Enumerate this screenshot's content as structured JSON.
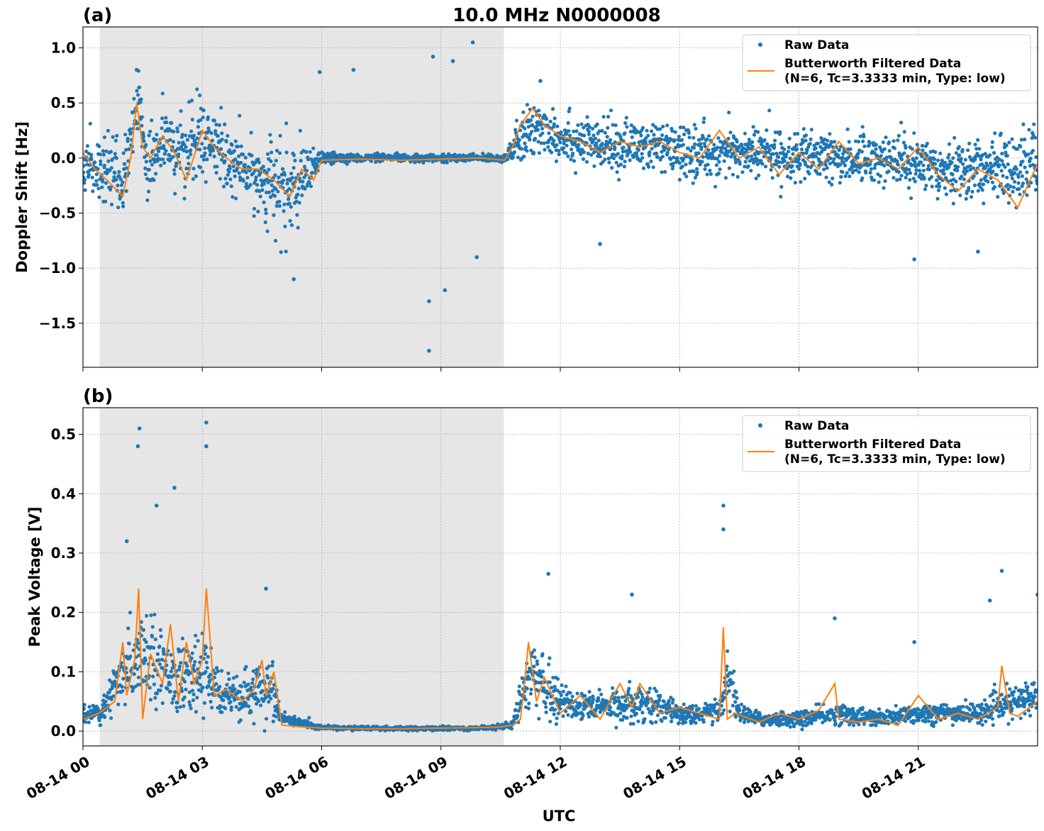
{
  "figure": {
    "title": "10.0 MHz N0000008",
    "xlabel": "UTC",
    "xticks": [
      "08-14 00",
      "08-14 03",
      "08-14 06",
      "08-14 09",
      "08-14 12",
      "08-14 15",
      "08-14 18",
      "08-14 21"
    ]
  },
  "colors": {
    "raw": "#1f77b4",
    "filtered": "#ff7f0e",
    "shade": "#e6e6e6",
    "grid": "#b0b0b0"
  },
  "chart_data": [
    {
      "type": "scatter",
      "panel_label": "(a)",
      "ylabel": "Doppler Shift [Hz]",
      "xlim_hours": [
        0,
        24
      ],
      "ylim": [
        -1.9,
        1.19
      ],
      "yticks": [
        1.0,
        0.5,
        0.0,
        -0.5,
        -1.0,
        -1.5
      ],
      "ytick_labels": [
        "1.0",
        "0.5",
        "0.0",
        "−0.5",
        "−1.0",
        "−1.5"
      ],
      "shaded_region_hours": [
        0.42,
        10.58
      ],
      "grid": true,
      "legend": {
        "placement": "top-right",
        "entries": [
          "Raw Data",
          "Butterworth Filtered Data",
          "(N=6, Tc=3.3333 min, Type: low)"
        ]
      },
      "series": [
        {
          "name": "Raw Data",
          "kind": "scatter",
          "x_hours": [
            0,
            0.5,
            1.0,
            1.4,
            1.6,
            2.0,
            2.5,
            3.0,
            3.5,
            4.0,
            4.5,
            5.0,
            5.5,
            6.0,
            7.0,
            8.0,
            9.0,
            10.0,
            10.6,
            11.0,
            11.5,
            12.0,
            13.0,
            14.0,
            15.0,
            16.0,
            17.0,
            18.0,
            19.0,
            20.0,
            21.0,
            22.0,
            23.0,
            24.0
          ],
          "y_center": [
            -0.05,
            -0.12,
            -0.2,
            0.5,
            -0.05,
            0.15,
            0.05,
            0.2,
            0.0,
            -0.1,
            -0.2,
            -0.3,
            -0.25,
            0.0,
            0.0,
            0.0,
            0.0,
            0.0,
            0.0,
            0.15,
            0.3,
            0.2,
            0.1,
            0.12,
            0.05,
            0.05,
            0.05,
            0.0,
            0.0,
            0.0,
            -0.05,
            -0.1,
            -0.1,
            -0.05
          ],
          "y_spread": [
            0.2,
            0.3,
            0.25,
            0.3,
            0.35,
            0.3,
            0.3,
            0.3,
            0.3,
            0.25,
            0.3,
            0.4,
            0.3,
            0.05,
            0.03,
            0.03,
            0.03,
            0.03,
            0.03,
            0.2,
            0.25,
            0.2,
            0.2,
            0.2,
            0.2,
            0.2,
            0.2,
            0.2,
            0.2,
            0.2,
            0.2,
            0.25,
            0.25,
            0.25
          ],
          "outliers": [
            [
              1.35,
              0.8
            ],
            [
              5.95,
              0.78
            ],
            [
              6.8,
              0.8
            ],
            [
              8.8,
              0.92
            ],
            [
              9.3,
              0.88
            ],
            [
              9.8,
              1.05
            ],
            [
              8.7,
              -1.75
            ],
            [
              8.7,
              -1.3
            ],
            [
              9.1,
              -1.2
            ],
            [
              5.3,
              -1.1
            ],
            [
              9.9,
              -0.9
            ],
            [
              13.0,
              -0.78
            ],
            [
              22.5,
              -0.85
            ],
            [
              20.9,
              -0.92
            ],
            [
              11.5,
              0.7
            ]
          ]
        },
        {
          "name": "Butterworth Filtered Data",
          "kind": "line",
          "x_hours": [
            0,
            0.3,
            0.6,
            1.0,
            1.2,
            1.35,
            1.5,
            1.7,
            2.0,
            2.3,
            2.6,
            3.0,
            3.3,
            3.6,
            4.0,
            4.4,
            4.8,
            5.2,
            5.5,
            5.8,
            6.0,
            7.0,
            8.0,
            9.0,
            10.0,
            10.6,
            10.8,
            11.0,
            11.3,
            11.6,
            12.0,
            12.5,
            13.0,
            13.5,
            14.0,
            14.5,
            15.0,
            15.5,
            16.0,
            16.5,
            17.0,
            17.5,
            18.0,
            18.5,
            19.0,
            19.5,
            20.0,
            20.5,
            21.0,
            21.5,
            22.0,
            22.5,
            23.0,
            23.5,
            24.0
          ],
          "y": [
            0.05,
            -0.1,
            -0.2,
            -0.35,
            0.0,
            0.5,
            0.1,
            0.0,
            0.2,
            0.05,
            -0.2,
            0.25,
            0.1,
            0.0,
            -0.1,
            -0.1,
            -0.2,
            -0.35,
            -0.1,
            -0.2,
            -0.02,
            -0.01,
            -0.02,
            -0.01,
            0.0,
            -0.02,
            0.1,
            0.3,
            0.45,
            0.3,
            0.2,
            0.15,
            0.05,
            0.15,
            0.1,
            0.15,
            0.05,
            0.0,
            0.25,
            0.0,
            0.1,
            -0.15,
            0.05,
            -0.1,
            0.15,
            -0.05,
            0.0,
            -0.1,
            0.1,
            -0.15,
            -0.3,
            -0.1,
            -0.2,
            -0.45,
            -0.05
          ]
        }
      ]
    },
    {
      "type": "scatter",
      "panel_label": "(b)",
      "ylabel": "Peak Voltage [V]",
      "xlim_hours": [
        0,
        24
      ],
      "ylim": [
        -0.025,
        0.545
      ],
      "yticks": [
        0.5,
        0.4,
        0.3,
        0.2,
        0.1,
        0.0
      ],
      "ytick_labels": [
        "0.5",
        "0.4",
        "0.3",
        "0.2",
        "0.1",
        "0.0"
      ],
      "shaded_region_hours": [
        0.42,
        10.58
      ],
      "grid": true,
      "legend": {
        "placement": "top-right",
        "entries": [
          "Raw Data",
          "Butterworth Filtered Data",
          "(N=6, Tc=3.3333 min, Type: low)"
        ]
      },
      "series": [
        {
          "name": "Raw Data",
          "kind": "scatter",
          "x_hours": [
            0,
            0.5,
            1.0,
            1.4,
            1.8,
            2.2,
            2.6,
            3.0,
            3.2,
            3.6,
            4.0,
            4.5,
            4.8,
            5.0,
            6.0,
            8.0,
            10.0,
            10.8,
            11.2,
            11.5,
            12.0,
            13.0,
            14.0,
            15.0,
            16.0,
            16.2,
            16.5,
            17.0,
            18.0,
            19.0,
            20.0,
            21.0,
            22.0,
            22.5,
            23.0,
            23.5,
            24.0
          ],
          "y_center": [
            0.025,
            0.035,
            0.09,
            0.14,
            0.12,
            0.1,
            0.08,
            0.1,
            0.09,
            0.06,
            0.05,
            0.08,
            0.06,
            0.02,
            0.006,
            0.004,
            0.005,
            0.01,
            0.1,
            0.08,
            0.05,
            0.04,
            0.05,
            0.03,
            0.03,
            0.1,
            0.03,
            0.02,
            0.02,
            0.03,
            0.02,
            0.03,
            0.03,
            0.03,
            0.04,
            0.05,
            0.06
          ],
          "y_spread": [
            0.012,
            0.02,
            0.05,
            0.06,
            0.06,
            0.05,
            0.05,
            0.05,
            0.05,
            0.03,
            0.03,
            0.05,
            0.04,
            0.01,
            0.003,
            0.003,
            0.003,
            0.005,
            0.05,
            0.04,
            0.03,
            0.02,
            0.03,
            0.015,
            0.015,
            0.05,
            0.015,
            0.01,
            0.012,
            0.015,
            0.012,
            0.015,
            0.015,
            0.015,
            0.02,
            0.025,
            0.03
          ],
          "outliers": [
            [
              1.42,
              0.51
            ],
            [
              1.38,
              0.48
            ],
            [
              3.1,
              0.52
            ],
            [
              3.1,
              0.48
            ],
            [
              2.3,
              0.41
            ],
            [
              1.85,
              0.38
            ],
            [
              1.1,
              0.32
            ],
            [
              16.1,
              0.38
            ],
            [
              16.1,
              0.34
            ],
            [
              11.7,
              0.265
            ],
            [
              23.1,
              0.27
            ],
            [
              13.8,
              0.23
            ],
            [
              18.9,
              0.19
            ],
            [
              22.8,
              0.22
            ],
            [
              24.0,
              0.23
            ],
            [
              20.9,
              0.15
            ],
            [
              4.6,
              0.24
            ]
          ]
        },
        {
          "name": "Butterworth Filtered Data",
          "kind": "line",
          "x_hours": [
            0,
            0.4,
            0.8,
            1.0,
            1.1,
            1.3,
            1.4,
            1.5,
            1.7,
            2.0,
            2.2,
            2.4,
            2.6,
            2.8,
            3.0,
            3.1,
            3.3,
            3.6,
            4.0,
            4.3,
            4.5,
            4.6,
            4.8,
            5.0,
            5.5,
            6.0,
            7.0,
            8.0,
            9.0,
            10.0,
            10.5,
            10.8,
            11.0,
            11.1,
            11.2,
            11.4,
            11.6,
            12.0,
            12.5,
            13.0,
            13.5,
            13.8,
            14.0,
            14.5,
            15.0,
            15.5,
            16.0,
            16.1,
            16.2,
            16.4,
            17.0,
            17.5,
            18.0,
            18.5,
            18.9,
            19.0,
            19.5,
            20.0,
            20.5,
            21.0,
            21.5,
            22.0,
            22.5,
            23.0,
            23.1,
            23.3,
            23.5,
            24.0
          ],
          "y": [
            0.02,
            0.03,
            0.05,
            0.15,
            0.06,
            0.12,
            0.24,
            0.02,
            0.13,
            0.08,
            0.18,
            0.05,
            0.15,
            0.08,
            0.12,
            0.24,
            0.06,
            0.07,
            0.05,
            0.07,
            0.12,
            0.06,
            0.1,
            0.01,
            0.007,
            0.005,
            0.004,
            0.004,
            0.005,
            0.006,
            0.007,
            0.01,
            0.02,
            0.08,
            0.15,
            0.05,
            0.09,
            0.03,
            0.06,
            0.02,
            0.08,
            0.04,
            0.08,
            0.03,
            0.04,
            0.03,
            0.02,
            0.175,
            0.02,
            0.03,
            0.015,
            0.03,
            0.02,
            0.035,
            0.08,
            0.02,
            0.015,
            0.02,
            0.01,
            0.06,
            0.02,
            0.03,
            0.02,
            0.04,
            0.11,
            0.03,
            0.025,
            0.05
          ]
        }
      ]
    }
  ]
}
